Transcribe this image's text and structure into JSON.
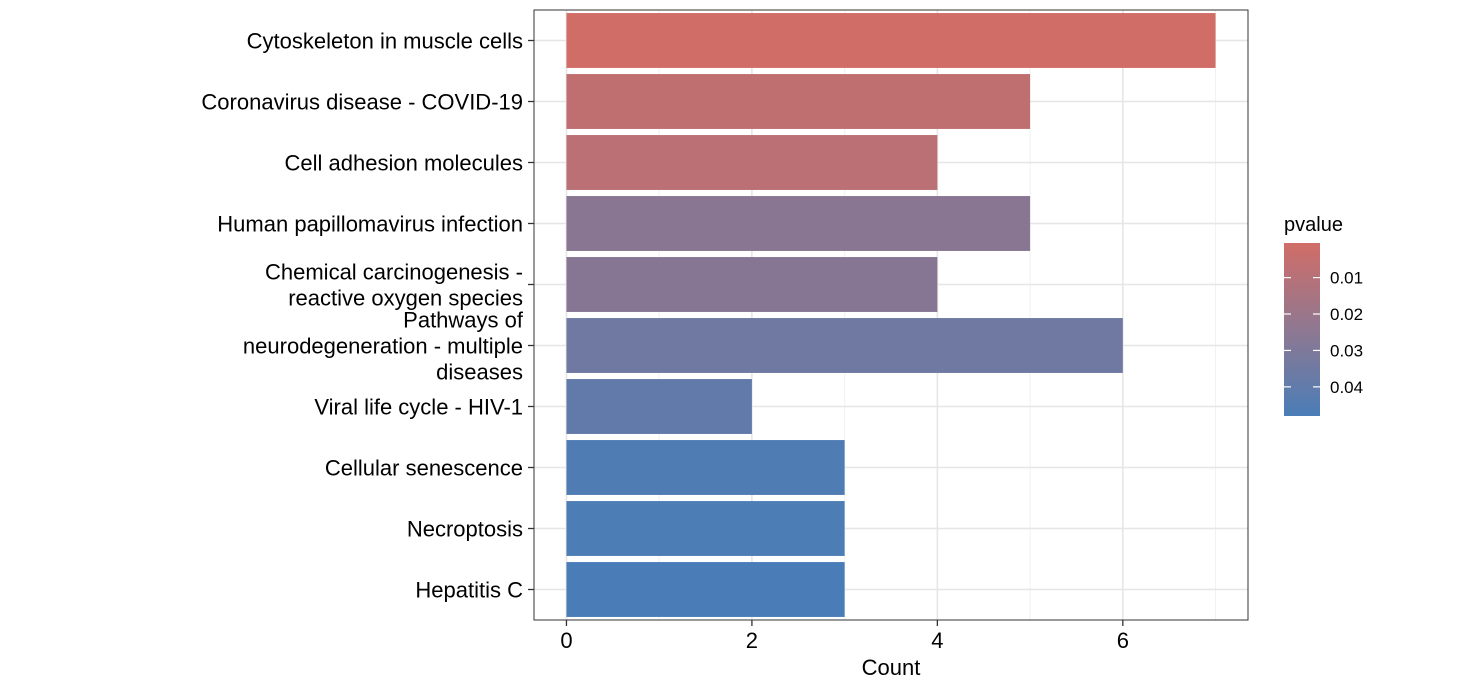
{
  "chart_data": {
    "type": "bar",
    "orientation": "horizontal",
    "categories": [
      "Cytoskeleton in muscle cells",
      "Coronavirus disease - COVID-19",
      "Cell adhesion molecules",
      "Human papillomavirus infection",
      "Chemical carcinogenesis -\nreactive oxygen species",
      "Pathways of\nneurodegeneration - multiple\ndiseases",
      "Viral life cycle - HIV-1",
      "Cellular senescence",
      "Necroptosis",
      "Hepatitis C"
    ],
    "values": [
      7,
      5,
      4,
      5,
      4,
      6,
      2,
      3,
      3,
      3
    ],
    "pvalues": [
      0.0005,
      0.0065,
      0.0085,
      0.026,
      0.027,
      0.035,
      0.04,
      0.046,
      0.047,
      0.048
    ],
    "xlabel": "Count",
    "ylabel": "",
    "xlim": [
      -0.35,
      7.35
    ],
    "xticks": [
      0,
      2,
      4,
      6
    ],
    "xtick_labels": [
      "0",
      "2",
      "4",
      "6"
    ],
    "grid": true,
    "legend": {
      "title": "pvalue",
      "position": "right",
      "range": [
        0.0005,
        0.048
      ],
      "ticks": [
        0.01,
        0.02,
        0.03,
        0.04
      ],
      "tick_labels": [
        "0.01",
        "0.02",
        "0.03",
        "0.04"
      ],
      "color_low": "#d16d67",
      "color_high": "#4a7db7"
    }
  }
}
